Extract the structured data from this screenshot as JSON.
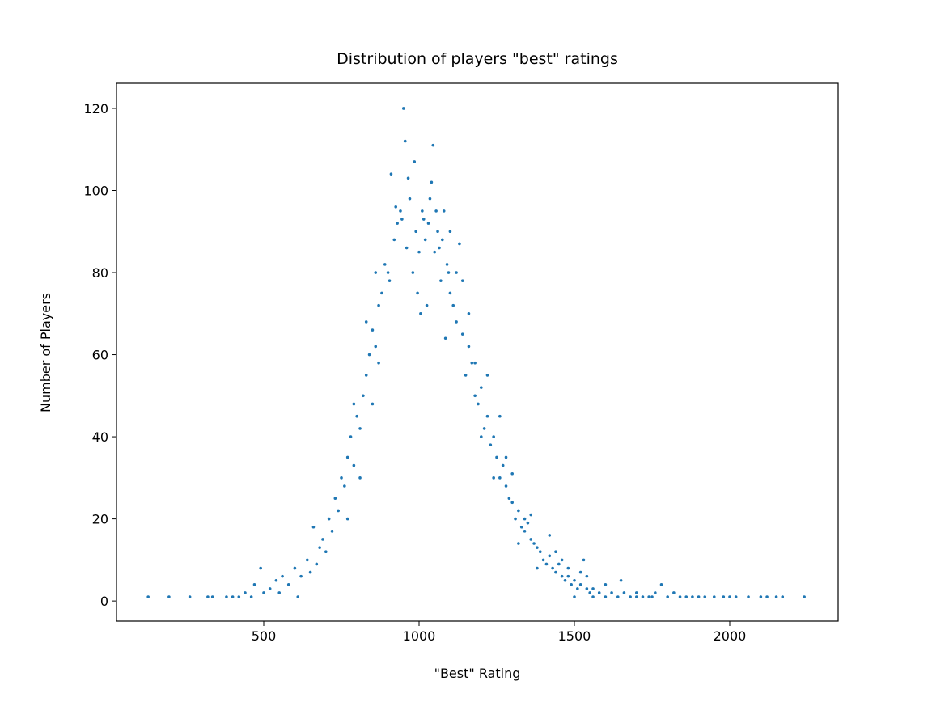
{
  "chart_data": {
    "type": "scatter",
    "title": "Distribution of players \"best\" ratings",
    "x_label": "\"Best\" Rating",
    "y_label": "Number of Players",
    "color": "#1f77b4",
    "xlim": [
      26,
      2349
    ],
    "ylim": [
      -4.9,
      126.1
    ],
    "xticks": [
      500,
      1000,
      1500,
      2000
    ],
    "yticks": [
      0,
      20,
      40,
      60,
      80,
      100,
      120
    ],
    "x": [
      128,
      195,
      262,
      320,
      335,
      380,
      400,
      420,
      440,
      460,
      470,
      490,
      500,
      520,
      540,
      550,
      560,
      580,
      600,
      610,
      620,
      640,
      650,
      660,
      670,
      680,
      690,
      700,
      710,
      720,
      730,
      740,
      750,
      760,
      770,
      780,
      790,
      800,
      810,
      820,
      830,
      840,
      850,
      860,
      870,
      880,
      890,
      900,
      910,
      920,
      930,
      940,
      950,
      955,
      960,
      970,
      980,
      990,
      1000,
      1010,
      1020,
      1030,
      1040,
      1045,
      1050,
      1060,
      1070,
      1080,
      1090,
      1100,
      1110,
      1120,
      1130,
      1140,
      1150,
      1160,
      1170,
      1180,
      1190,
      1200,
      1210,
      1220,
      1230,
      1240,
      1250,
      1260,
      1270,
      1280,
      1290,
      1300,
      1310,
      1320,
      1330,
      1340,
      1350,
      1360,
      1370,
      1380,
      1390,
      1400,
      1410,
      1420,
      1430,
      1440,
      1450,
      1460,
      1470,
      1480,
      1490,
      1500,
      1510,
      1520,
      1530,
      1540,
      1550,
      1560,
      1580,
      1600,
      1620,
      1640,
      1660,
      1680,
      1700,
      1720,
      1740,
      1760,
      1780,
      1800,
      1820,
      1840,
      1860,
      1880,
      1900,
      1920,
      1950,
      1980,
      2000,
      2020,
      2060,
      2100,
      2120,
      2150,
      2170,
      2240,
      905,
      925,
      945,
      965,
      985,
      995,
      1005,
      1015,
      1025,
      1035,
      1055,
      1065,
      1075,
      1085,
      1095,
      860,
      870,
      850,
      830,
      810,
      790,
      770,
      1100,
      1120,
      1140,
      1160,
      1180,
      1200,
      1220,
      1240,
      1260,
      1280,
      1300,
      1320,
      1340,
      1360,
      1380,
      1420,
      1440,
      1460,
      1480,
      1500,
      1520,
      1540,
      1560,
      1600,
      1650,
      1700,
      1750
    ],
    "values": [
      1,
      1,
      1,
      1,
      1,
      1,
      1,
      1,
      2,
      1,
      4,
      8,
      2,
      3,
      5,
      2,
      6,
      4,
      8,
      1,
      6,
      10,
      7,
      18,
      9,
      13,
      15,
      12,
      20,
      17,
      25,
      22,
      30,
      28,
      35,
      40,
      33,
      45,
      42,
      50,
      55,
      60,
      66,
      62,
      72,
      75,
      82,
      80,
      104,
      88,
      92,
      95,
      120,
      112,
      86,
      98,
      80,
      90,
      85,
      95,
      88,
      92,
      102,
      111,
      85,
      90,
      78,
      95,
      82,
      75,
      72,
      68,
      87,
      65,
      55,
      70,
      58,
      50,
      48,
      52,
      42,
      45,
      38,
      40,
      35,
      30,
      33,
      28,
      25,
      24,
      20,
      22,
      18,
      17,
      19,
      15,
      14,
      13,
      12,
      10,
      9,
      11,
      8,
      7,
      9,
      6,
      5,
      6,
      4,
      5,
      3,
      4,
      10,
      3,
      2,
      3,
      2,
      4,
      2,
      1,
      2,
      1,
      2,
      1,
      1,
      2,
      4,
      1,
      2,
      1,
      1,
      1,
      1,
      1,
      1,
      1,
      1,
      1,
      1,
      1,
      1,
      1,
      1,
      1,
      78,
      96,
      93,
      103,
      107,
      75,
      70,
      93,
      72,
      98,
      95,
      86,
      88,
      64,
      80,
      80,
      58,
      48,
      68,
      30,
      48,
      20,
      90,
      80,
      78,
      62,
      58,
      40,
      55,
      30,
      45,
      35,
      31,
      14,
      20,
      21,
      8,
      16,
      12,
      10,
      8,
      1,
      7,
      6,
      1,
      1,
      5,
      1,
      1
    ]
  }
}
